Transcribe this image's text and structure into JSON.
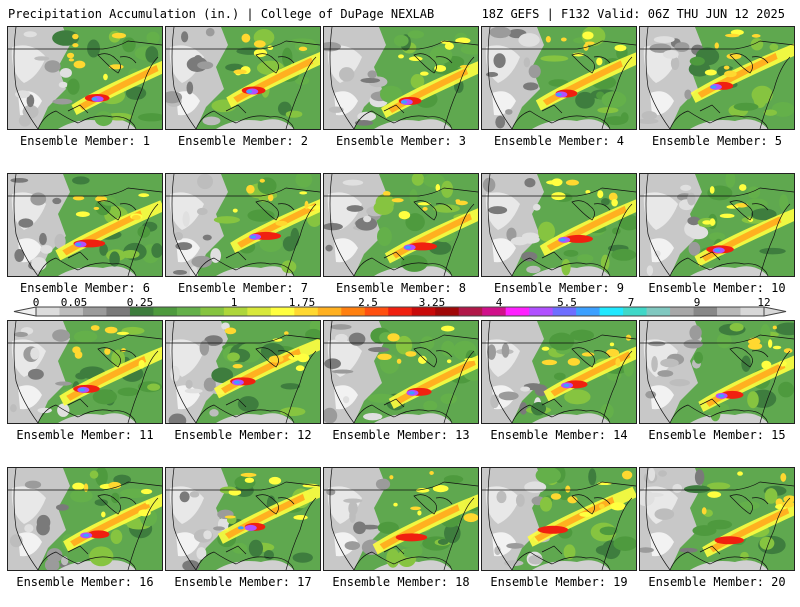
{
  "header": {
    "title": "Precipitation Accumulation (in.) | College of DuPage NEXLAB",
    "run_info": "18Z GEFS | F132 Valid: 06Z THU JUN 12 2025"
  },
  "colorbar": {
    "tick_labels": [
      "0",
      "0.05",
      "0.25",
      "1",
      "1.75",
      "2.5",
      "3.25",
      "4",
      "5.5",
      "7",
      "9",
      "12"
    ],
    "colors": [
      "#dcdcdc",
      "#bdbdbd",
      "#9b9b9b",
      "#7a7a7a",
      "#3e7d3e",
      "#4e9a3e",
      "#64b04a",
      "#86c440",
      "#aed63a",
      "#d8e83a",
      "#ffff40",
      "#ffd830",
      "#ffb020",
      "#ff8010",
      "#ff5010",
      "#f02010",
      "#c80a0a",
      "#a00808",
      "#b01848",
      "#d0108a",
      "#ff20ff",
      "#b050ff",
      "#6e6eff",
      "#3ca0ff",
      "#20e8ff",
      "#40d8c8",
      "#80c8c0",
      "#a8a8a8",
      "#888888",
      "#b8b8b8",
      "#d8d8d8"
    ]
  },
  "members": [
    {
      "label": "Ensemble Member: 1"
    },
    {
      "label": "Ensemble Member: 2"
    },
    {
      "label": "Ensemble Member: 3"
    },
    {
      "label": "Ensemble Member: 4"
    },
    {
      "label": "Ensemble Member: 5"
    },
    {
      "label": "Ensemble Member: 6"
    },
    {
      "label": "Ensemble Member: 7"
    },
    {
      "label": "Ensemble Member: 8"
    },
    {
      "label": "Ensemble Member: 9"
    },
    {
      "label": "Ensemble Member: 10"
    },
    {
      "label": "Ensemble Member: 11"
    },
    {
      "label": "Ensemble Member: 12"
    },
    {
      "label": "Ensemble Member: 13"
    },
    {
      "label": "Ensemble Member: 14"
    },
    {
      "label": "Ensemble Member: 15"
    },
    {
      "label": "Ensemble Member: 16"
    },
    {
      "label": "Ensemble Member: 17"
    },
    {
      "label": "Ensemble Member: 18"
    },
    {
      "label": "Ensemble Member: 19"
    },
    {
      "label": "Ensemble Member: 20"
    }
  ]
}
